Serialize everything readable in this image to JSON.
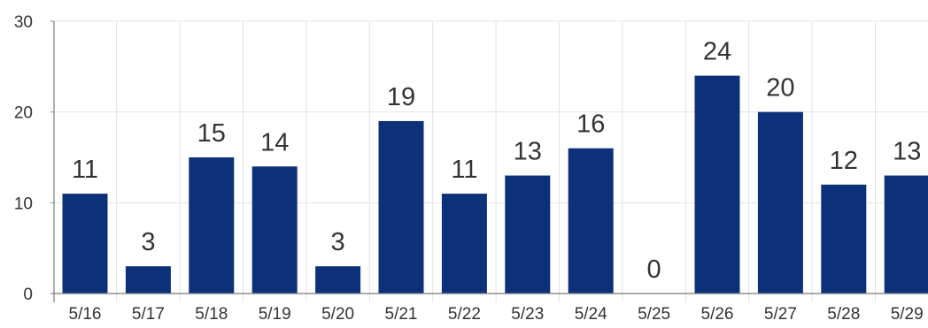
{
  "chart_data": {
    "type": "bar",
    "categories": [
      "5/16",
      "5/17",
      "5/18",
      "5/19",
      "5/20",
      "5/21",
      "5/22",
      "5/23",
      "5/24",
      "5/25",
      "5/26",
      "5/27",
      "5/28",
      "5/29"
    ],
    "values": [
      11,
      3,
      15,
      14,
      3,
      19,
      11,
      13,
      16,
      0,
      24,
      20,
      12,
      13
    ],
    "data_labels": [
      "11",
      "3",
      "15",
      "14",
      "3",
      "19",
      "11",
      "13",
      "16",
      "0",
      "24",
      "20",
      "12",
      "13"
    ],
    "y_ticks": [
      "0",
      "10",
      "20",
      "30"
    ],
    "title": "",
    "xlabel": "",
    "ylabel": "",
    "ylim": [
      0,
      30
    ],
    "grid": true,
    "legend": "none",
    "bar_color": "#0d3178"
  }
}
